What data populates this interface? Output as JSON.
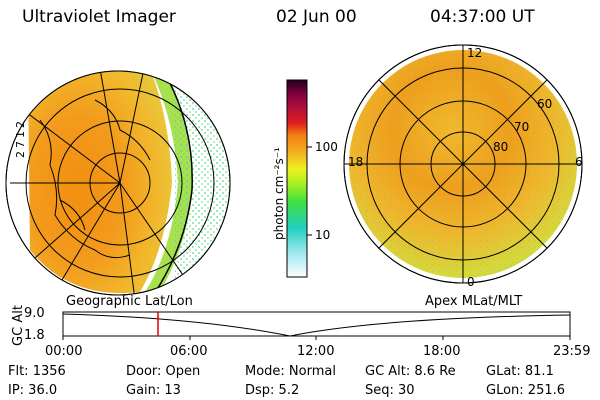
{
  "header": {
    "title": "Ultraviolet Imager",
    "date": "02 Jun 00",
    "time": "04:37:00 UT"
  },
  "colorbar": {
    "label": "photon cm⁻²s⁻¹",
    "ticks": [
      "100",
      "10"
    ]
  },
  "left_panel": {
    "label": "Geographic Lat/Lon",
    "edge_ticks": [
      "2",
      "1",
      "7",
      "2"
    ]
  },
  "right_panel": {
    "label": "Apex MLat/MLT",
    "lat_labels": [
      "60",
      "70",
      "80"
    ],
    "mlt_labels": [
      "12",
      "18",
      "6",
      "0"
    ]
  },
  "timeline": {
    "ylabel": "GC Alt",
    "y_ticks": [
      "9.0",
      "1.8"
    ],
    "x_ticks": [
      "00:00",
      "06:00",
      "12:00",
      "18:00",
      "23:59"
    ],
    "marker_color": "#e00000"
  },
  "footer": {
    "flt": "Flt: 1356",
    "ip": "IP: 36.0",
    "door": "Door:  Open",
    "gain": "Gain: 13",
    "mode": "Mode:  Normal",
    "dsp": "Dsp:     5.2",
    "gcalt": "GC Alt:  8.6 Re",
    "seq": "Seq:  30",
    "glat": "GLat:   81.1",
    "glon": "GLon:  251.6"
  }
}
